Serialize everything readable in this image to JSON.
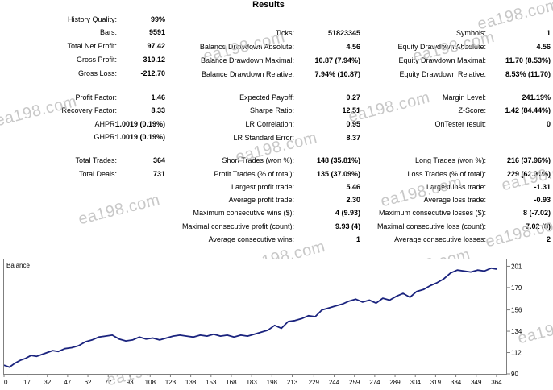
{
  "title": "Results",
  "watermark": "ea198.com",
  "stats": {
    "col1": [
      {
        "label": "History Quality:",
        "value": "99%"
      },
      {
        "label": "Bars:",
        "value": "9591"
      },
      {
        "label": "Total Net Profit:",
        "value": "97.42"
      },
      {
        "label": "Gross Profit:",
        "value": "310.12"
      },
      {
        "label": "Gross Loss:",
        "value": "-212.70"
      },
      {
        "label": "Profit Factor:",
        "value": "1.46"
      },
      {
        "label": "Recovery Factor:",
        "value": "8.33"
      },
      {
        "label": "AHPR:",
        "value": "1.0019 (0.19%)"
      },
      {
        "label": "GHPR:",
        "value": "1.0019 (0.19%)"
      },
      {
        "label": "Total Trades:",
        "value": "364"
      },
      {
        "label": "Total Deals:",
        "value": "731"
      }
    ],
    "col2": [
      {
        "label": "Ticks:",
        "value": "51823345"
      },
      {
        "label": "Balance Drawdown Absolute:",
        "value": "4.56"
      },
      {
        "label": "Balance Drawdown Maximal:",
        "value": "10.87 (7.94%)"
      },
      {
        "label": "Balance Drawdown Relative:",
        "value": "7.94% (10.87)"
      },
      {
        "label": "Expected Payoff:",
        "value": "0.27"
      },
      {
        "label": "Sharpe Ratio:",
        "value": "12.51"
      },
      {
        "label": "LR Correlation:",
        "value": "0.95"
      },
      {
        "label": "LR Standard Error:",
        "value": "8.37"
      },
      {
        "label": "Short Trades (won %):",
        "value": "148 (35.81%)"
      },
      {
        "label": "Profit Trades (% of total):",
        "value": "135 (37.09%)"
      },
      {
        "label": "Largest profit trade:",
        "value": "5.46"
      },
      {
        "label": "Average profit trade:",
        "value": "2.30"
      },
      {
        "label": "Maximum consecutive wins ($):",
        "value": "4 (9.93)"
      },
      {
        "label": "Maximal consecutive profit (count):",
        "value": "9.93 (4)"
      },
      {
        "label": "Average consecutive wins:",
        "value": "1"
      }
    ],
    "col3": [
      {
        "label": "Symbols:",
        "value": "1"
      },
      {
        "label": "Equity Drawdown Absolute:",
        "value": "4.56"
      },
      {
        "label": "Equity Drawdown Maximal:",
        "value": "11.70 (8.53%)"
      },
      {
        "label": "Equity Drawdown Relative:",
        "value": "8.53% (11.70)"
      },
      {
        "label": "Margin Level:",
        "value": "241.19%"
      },
      {
        "label": "Z-Score:",
        "value": "1.42 (84.44%)"
      },
      {
        "label": "OnTester result:",
        "value": "0"
      },
      {
        "label": "Long Trades (won %):",
        "value": "216 (37.96%)"
      },
      {
        "label": "Loss Trades (% of total):",
        "value": "229 (62.91%)"
      },
      {
        "label": "Largest loss trade:",
        "value": "-1.31"
      },
      {
        "label": "Average loss trade:",
        "value": "-0.93"
      },
      {
        "label": "Maximum consecutive losses ($):",
        "value": "8 (-7.02)"
      },
      {
        "label": "Maximal consecutive loss (count):",
        "value": "-7.02 (8)"
      },
      {
        "label": "Average consecutive losses:",
        "value": "2"
      }
    ]
  },
  "chart_data": {
    "type": "line",
    "title": "Balance",
    "xlabel": "",
    "ylabel": "",
    "x_ticks": [
      0,
      17,
      32,
      47,
      62,
      77,
      93,
      108,
      123,
      138,
      153,
      168,
      183,
      198,
      213,
      229,
      244,
      259,
      274,
      289,
      304,
      319,
      334,
      349,
      364
    ],
    "y_ticks": [
      90,
      112,
      134,
      156,
      179,
      201
    ],
    "xlim": [
      0,
      370
    ],
    "ylim": [
      90,
      208
    ],
    "grid": false,
    "line_color": "#1a237e",
    "series": [
      {
        "name": "",
        "x": [
          0,
          4,
          8,
          12,
          16,
          20,
          24,
          28,
          32,
          36,
          40,
          45,
          50,
          55,
          60,
          65,
          70,
          75,
          80,
          85,
          90,
          95,
          100,
          105,
          110,
          115,
          120,
          125,
          130,
          135,
          140,
          145,
          150,
          155,
          160,
          165,
          170,
          175,
          180,
          185,
          190,
          195,
          200,
          205,
          210,
          215,
          220,
          225,
          230,
          235,
          240,
          245,
          250,
          255,
          260,
          265,
          270,
          275,
          280,
          285,
          290,
          295,
          300,
          305,
          310,
          315,
          320,
          325,
          330,
          335,
          340,
          345,
          350,
          355,
          360,
          364
        ],
        "values": [
          99,
          97,
          101,
          104,
          106,
          109,
          108,
          110,
          112,
          114,
          113,
          116,
          117,
          119,
          123,
          125,
          128,
          129,
          130,
          126,
          124,
          125,
          128,
          126,
          127,
          125,
          127,
          129,
          130,
          129,
          128,
          130,
          129,
          131,
          129,
          130,
          128,
          130,
          129,
          131,
          133,
          135,
          140,
          137,
          144,
          145,
          147,
          150,
          149,
          156,
          158,
          160,
          162,
          165,
          167,
          164,
          166,
          163,
          168,
          166,
          170,
          173,
          169,
          175,
          177,
          181,
          184,
          188,
          194,
          197,
          196,
          195,
          197,
          196,
          199,
          198
        ]
      }
    ]
  }
}
